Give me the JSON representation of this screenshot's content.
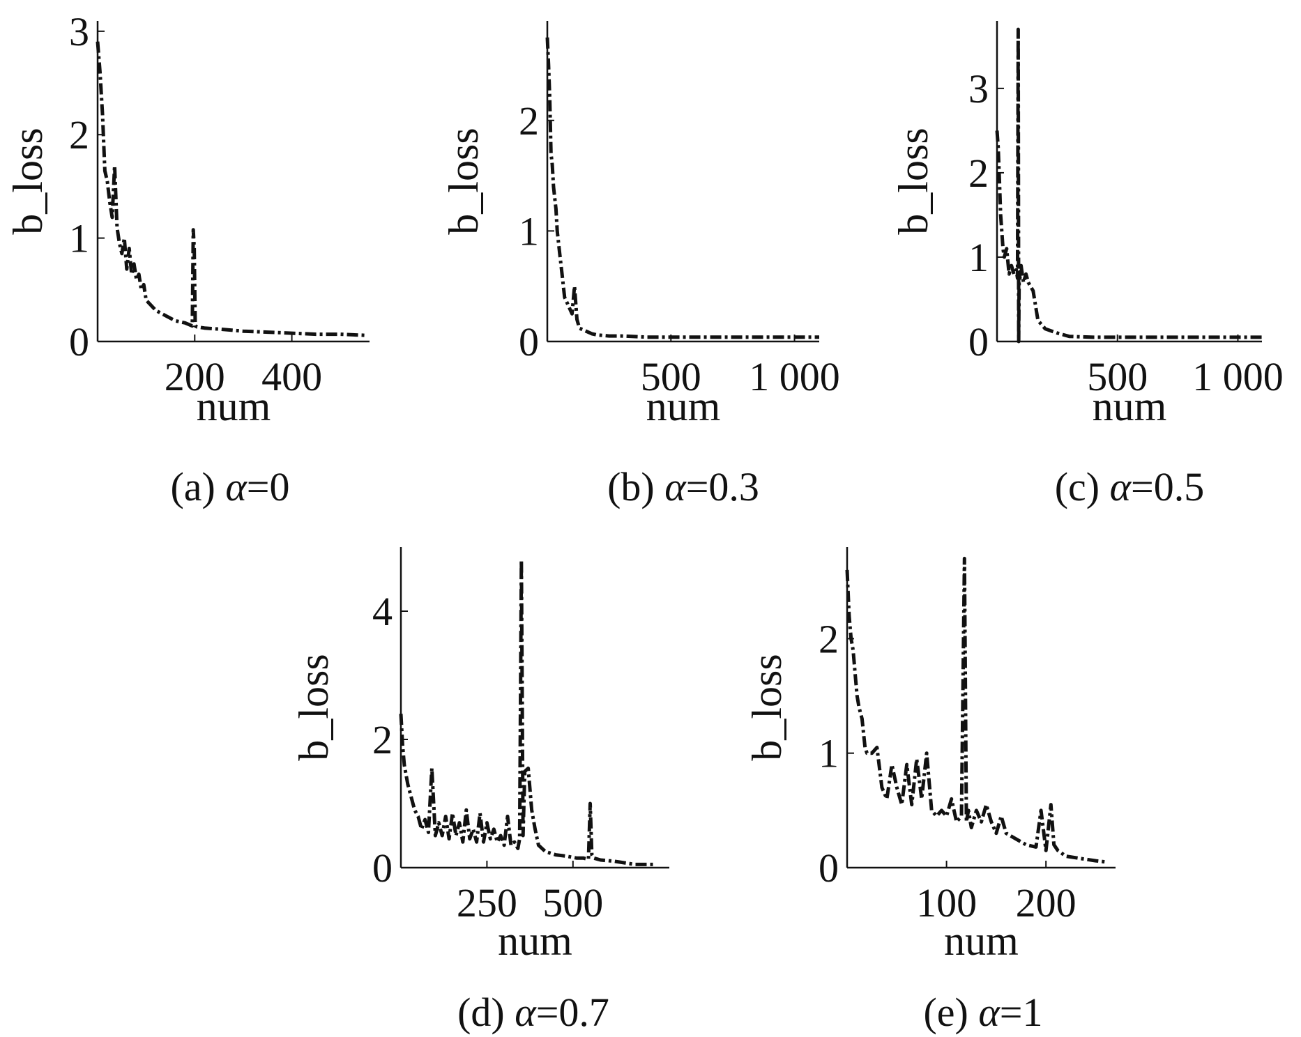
{
  "figure": {
    "background": "#ffffff",
    "line_color": "#111111"
  },
  "chart_data": [
    {
      "type": "line",
      "caption_prefix": "(a) ",
      "caption_symbol": "α",
      "caption_suffix": "=0",
      "xlabel": "num",
      "ylabel": "b_loss",
      "xlim": [
        0,
        560
      ],
      "ylim": [
        0,
        3.1
      ],
      "xticks": [
        {
          "value": 200,
          "label": "200"
        },
        {
          "value": 400,
          "label": "400"
        }
      ],
      "yticks": [
        {
          "value": 0,
          "label": "0"
        },
        {
          "value": 1,
          "label": "1"
        },
        {
          "value": 2,
          "label": "2"
        },
        {
          "value": 3,
          "label": "3"
        }
      ],
      "grid": false,
      "series": [
        {
          "line_style": "dash-dot",
          "x": [
            0,
            5,
            10,
            15,
            20,
            25,
            30,
            35,
            40,
            45,
            50,
            55,
            60,
            65,
            70,
            75,
            80,
            85,
            90,
            95,
            100,
            110,
            120,
            140,
            160,
            180,
            195,
            197,
            199,
            201,
            205,
            220,
            250,
            300,
            350,
            400,
            450,
            500,
            550
          ],
          "y": [
            2.9,
            2.6,
            2.2,
            1.65,
            1.55,
            1.35,
            1.2,
            1.7,
            1.1,
            0.95,
            0.85,
            1.0,
            0.7,
            0.9,
            0.65,
            0.75,
            0.6,
            0.65,
            0.5,
            0.55,
            0.4,
            0.35,
            0.3,
            0.25,
            0.2,
            0.18,
            0.15,
            1.08,
            0.9,
            0.15,
            0.14,
            0.13,
            0.12,
            0.1,
            0.09,
            0.08,
            0.07,
            0.07,
            0.06
          ]
        }
      ]
    },
    {
      "type": "line",
      "caption_prefix": "(b) ",
      "caption_symbol": "α",
      "caption_suffix": "=0.3",
      "xlabel": "num",
      "ylabel": "b_loss",
      "xlim": [
        0,
        1100
      ],
      "ylim": [
        0,
        2.9
      ],
      "xticks": [
        {
          "value": 500,
          "label": "500"
        },
        {
          "value": 1000,
          "label": "1 000"
        }
      ],
      "yticks": [
        {
          "value": 0,
          "label": "0"
        },
        {
          "value": 1,
          "label": "1"
        },
        {
          "value": 2,
          "label": "2"
        }
      ],
      "grid": false,
      "series": [
        {
          "line_style": "dash-dot",
          "x": [
            0,
            5,
            10,
            15,
            20,
            25,
            30,
            35,
            40,
            50,
            60,
            70,
            80,
            90,
            100,
            110,
            120,
            130,
            150,
            180,
            200,
            250,
            300,
            400,
            500,
            600,
            700,
            800,
            900,
            1000,
            1100
          ],
          "y": [
            2.75,
            2.5,
            2.2,
            1.7,
            1.6,
            1.4,
            1.3,
            1.2,
            1.0,
            0.8,
            0.6,
            0.4,
            0.35,
            0.3,
            0.25,
            0.5,
            0.2,
            0.12,
            0.1,
            0.07,
            0.06,
            0.05,
            0.05,
            0.04,
            0.04,
            0.04,
            0.04,
            0.04,
            0.04,
            0.04,
            0.04
          ]
        }
      ]
    },
    {
      "type": "line",
      "caption_prefix": "(c) ",
      "caption_symbol": "α",
      "caption_suffix": "=0.5",
      "xlabel": "num",
      "ylabel": "b_loss",
      "xlim": [
        0,
        1100
      ],
      "ylim": [
        0,
        3.8
      ],
      "xticks": [
        {
          "value": 500,
          "label": "500"
        },
        {
          "value": 1000,
          "label": "1 000"
        }
      ],
      "yticks": [
        {
          "value": 0,
          "label": "0"
        },
        {
          "value": 1,
          "label": "1"
        },
        {
          "value": 2,
          "label": "2"
        },
        {
          "value": 3,
          "label": "3"
        }
      ],
      "grid": false,
      "series": [
        {
          "line_style": "dash-dot",
          "x": [
            0,
            5,
            10,
            15,
            20,
            25,
            30,
            40,
            50,
            60,
            70,
            80,
            85,
            88,
            90,
            92,
            95,
            100,
            110,
            120,
            130,
            150,
            170,
            200,
            250,
            300,
            400,
            500,
            600,
            700,
            800,
            900,
            1000,
            1100
          ],
          "y": [
            2.5,
            2.3,
            1.9,
            1.5,
            1.3,
            1.1,
            1.0,
            1.1,
            0.8,
            0.9,
            0.8,
            0.85,
            0.75,
            3.7,
            0.0,
            0.8,
            0.75,
            0.9,
            0.7,
            0.8,
            0.7,
            0.6,
            0.25,
            0.15,
            0.1,
            0.06,
            0.05,
            0.05,
            0.05,
            0.05,
            0.05,
            0.05,
            0.05,
            0.05
          ]
        }
      ]
    },
    {
      "type": "line",
      "caption_prefix": "(d) ",
      "caption_symbol": "α",
      "caption_suffix": "=0.7",
      "xlabel": "num",
      "ylabel": "b_loss",
      "xlim": [
        0,
        780
      ],
      "ylim": [
        0,
        5.0
      ],
      "xticks": [
        {
          "value": 250,
          "label": "250"
        },
        {
          "value": 500,
          "label": "500"
        }
      ],
      "yticks": [
        {
          "value": 0,
          "label": "0"
        },
        {
          "value": 2,
          "label": "2"
        },
        {
          "value": 4,
          "label": "4"
        }
      ],
      "grid": false,
      "series": [
        {
          "line_style": "dash-dot",
          "x": [
            0,
            5,
            10,
            20,
            30,
            40,
            50,
            60,
            70,
            80,
            90,
            100,
            110,
            120,
            130,
            140,
            150,
            160,
            170,
            180,
            190,
            200,
            210,
            220,
            230,
            240,
            250,
            260,
            270,
            280,
            290,
            300,
            310,
            320,
            330,
            340,
            345,
            350,
            355,
            360,
            370,
            380,
            390,
            400,
            420,
            450,
            480,
            510,
            530,
            545,
            550,
            555,
            560,
            580,
            620,
            680,
            740
          ],
          "y": [
            2.4,
            1.9,
            1.6,
            1.3,
            1.1,
            0.9,
            0.8,
            0.6,
            0.75,
            0.55,
            1.55,
            0.5,
            0.7,
            0.5,
            0.8,
            0.45,
            0.85,
            0.5,
            0.7,
            0.4,
            0.9,
            0.45,
            0.6,
            0.4,
            0.85,
            0.4,
            0.7,
            0.45,
            0.6,
            0.4,
            0.5,
            0.35,
            0.8,
            0.35,
            0.4,
            0.3,
            0.45,
            4.8,
            0.5,
            1.5,
            1.55,
            0.9,
            0.6,
            0.35,
            0.25,
            0.2,
            0.18,
            0.15,
            0.15,
            0.13,
            1.0,
            0.2,
            0.15,
            0.12,
            0.1,
            0.05,
            0.05
          ]
        }
      ]
    },
    {
      "type": "line",
      "caption_prefix": "(e) ",
      "caption_symbol": "α",
      "caption_suffix": "=1",
      "xlabel": "num",
      "ylabel": "b_loss",
      "xlim": [
        0,
        270
      ],
      "ylim": [
        0,
        2.8
      ],
      "xticks": [
        {
          "value": 100,
          "label": "100"
        },
        {
          "value": 200,
          "label": "200"
        }
      ],
      "yticks": [
        {
          "value": 0,
          "label": "0"
        },
        {
          "value": 1,
          "label": "1"
        },
        {
          "value": 2,
          "label": "2"
        }
      ],
      "grid": false,
      "series": [
        {
          "line_style": "dash-dot",
          "x": [
            0,
            2,
            4,
            6,
            8,
            10,
            12,
            15,
            18,
            20,
            25,
            30,
            35,
            40,
            45,
            50,
            55,
            60,
            65,
            70,
            75,
            80,
            85,
            90,
            95,
            100,
            105,
            110,
            115,
            118,
            120,
            122,
            125,
            130,
            135,
            140,
            145,
            150,
            155,
            160,
            170,
            180,
            190,
            195,
            200,
            205,
            208,
            212,
            220,
            235,
            250,
            260
          ],
          "y": [
            2.6,
            2.2,
            2.0,
            1.9,
            1.7,
            1.5,
            1.4,
            1.3,
            1.05,
            1.0,
            1.0,
            1.05,
            0.7,
            0.6,
            0.9,
            0.7,
            0.55,
            0.9,
            0.55,
            0.95,
            0.6,
            1.0,
            0.5,
            0.45,
            0.5,
            0.45,
            0.6,
            0.4,
            0.45,
            2.7,
            0.4,
            0.5,
            0.35,
            0.5,
            0.4,
            0.55,
            0.4,
            0.3,
            0.45,
            0.3,
            0.25,
            0.2,
            0.18,
            0.5,
            0.15,
            0.55,
            0.2,
            0.15,
            0.1,
            0.08,
            0.06,
            0.05
          ]
        }
      ]
    }
  ]
}
